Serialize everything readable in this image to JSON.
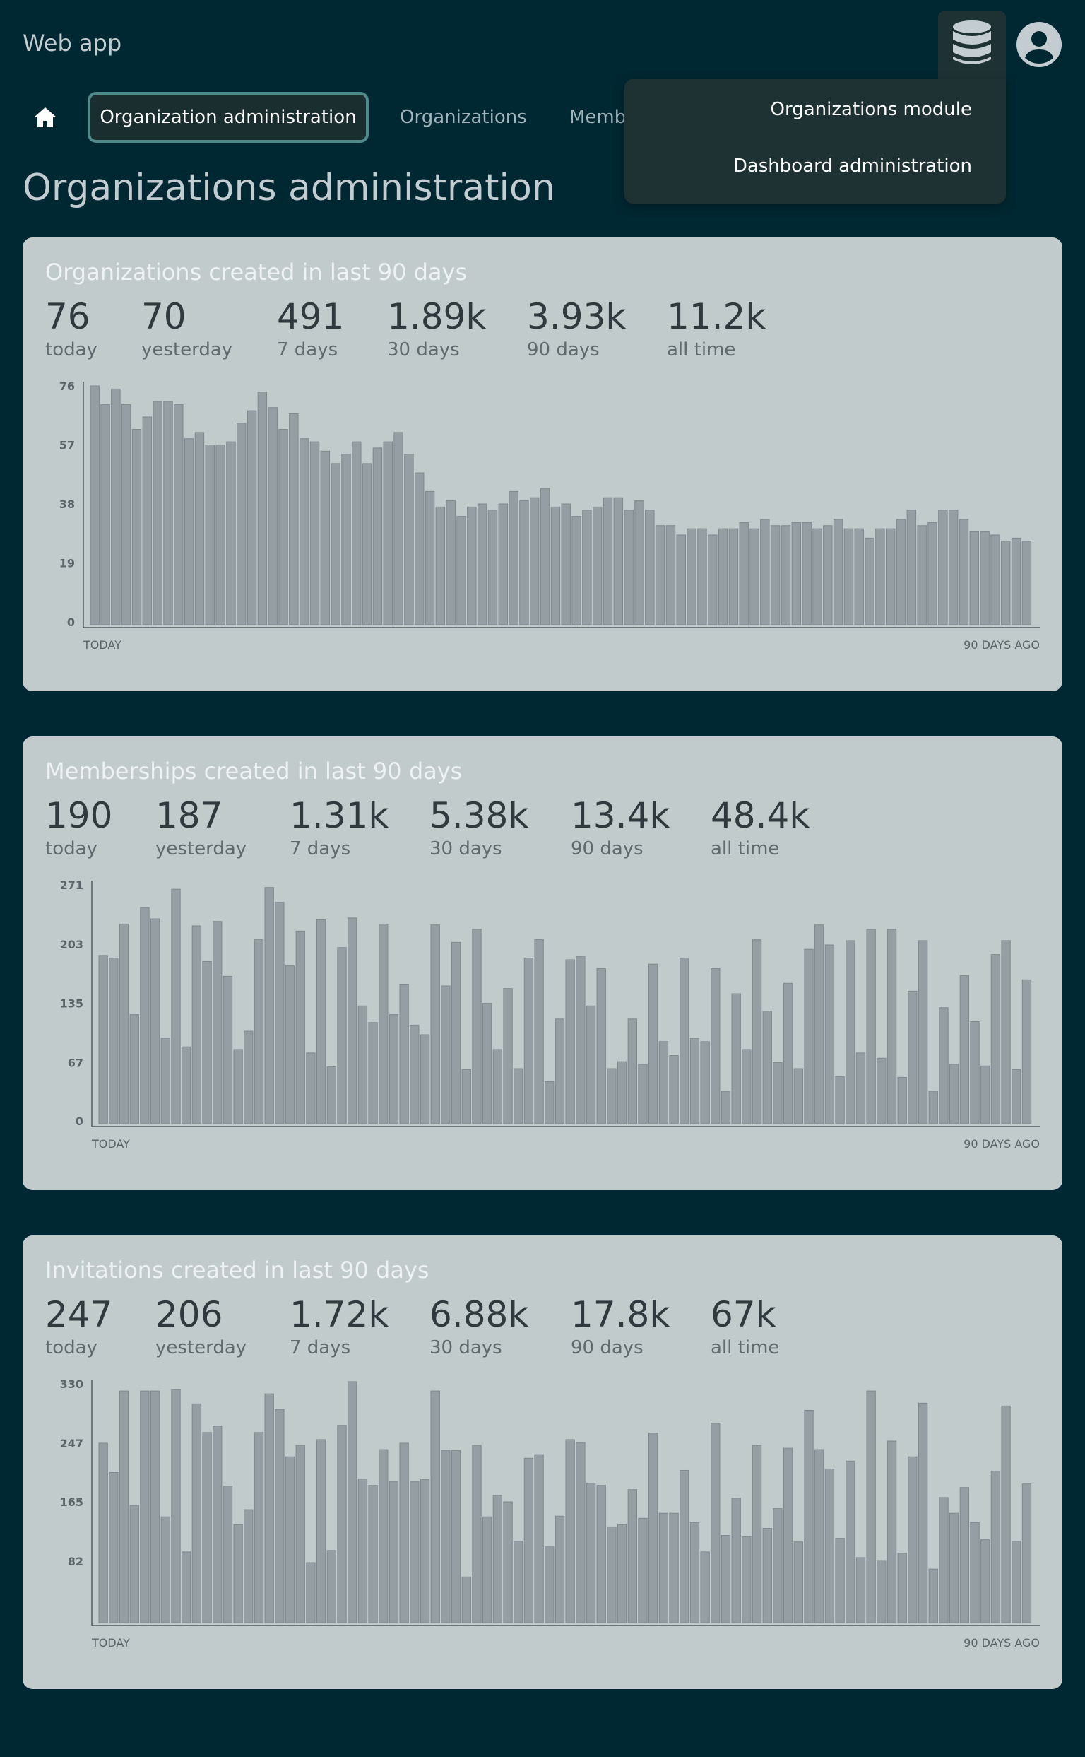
{
  "header": {
    "app_title": "Web app"
  },
  "nav": {
    "active_tab": "Organization administration",
    "tabs": [
      "Organizations",
      "Memb"
    ]
  },
  "dropdown": {
    "items": [
      "Organizations module",
      "Dashboard administration"
    ]
  },
  "page_title": "Organizations administration",
  "colors": {
    "background": "#002832",
    "card": "#c1cbcc",
    "bar": "#949ea3",
    "accent": "#4f8a8b"
  },
  "icons": {
    "database": "database-icon",
    "user": "account-circle-icon",
    "home": "home-icon"
  },
  "cards": [
    {
      "title": "Organizations created in last 90 days",
      "stats": [
        {
          "value": "76",
          "label": "today"
        },
        {
          "value": "70",
          "label": "yesterday"
        },
        {
          "value": "491",
          "label": "7 days"
        },
        {
          "value": "1.89k",
          "label": "30 days"
        },
        {
          "value": "3.93k",
          "label": "90 days"
        },
        {
          "value": "11.2k",
          "label": "all time"
        }
      ],
      "x_left_label": "TODAY",
      "x_right_label": "90 DAYS AGO"
    },
    {
      "title": "Memberships created in last 90 days",
      "stats": [
        {
          "value": "190",
          "label": "today"
        },
        {
          "value": "187",
          "label": "yesterday"
        },
        {
          "value": "1.31k",
          "label": "7 days"
        },
        {
          "value": "5.38k",
          "label": "30 days"
        },
        {
          "value": "13.4k",
          "label": "90 days"
        },
        {
          "value": "48.4k",
          "label": "all time"
        }
      ],
      "x_left_label": "TODAY",
      "x_right_label": "90 DAYS AGO"
    },
    {
      "title": "Invitations created in last 90 days",
      "stats": [
        {
          "value": "247",
          "label": "today"
        },
        {
          "value": "206",
          "label": "yesterday"
        },
        {
          "value": "1.72k",
          "label": "7 days"
        },
        {
          "value": "6.88k",
          "label": "30 days"
        },
        {
          "value": "17.8k",
          "label": "90 days"
        },
        {
          "value": "67k",
          "label": "all time"
        }
      ],
      "x_left_label": "TODAY",
      "x_right_label": "90 DAYS AGO"
    }
  ],
  "chart_data": [
    {
      "type": "bar",
      "yticks": [
        "0",
        "19",
        "38",
        "57",
        "76"
      ],
      "ylim": [
        0,
        76
      ],
      "values": [
        76,
        70,
        75,
        70,
        62,
        66,
        71,
        71,
        70,
        59,
        61,
        57,
        57,
        58,
        64,
        68,
        74,
        69,
        62,
        67,
        59,
        58,
        55,
        51,
        54,
        58,
        51,
        56,
        58,
        61,
        54,
        48,
        42,
        37,
        39,
        34,
        37,
        38,
        36,
        38,
        42,
        39,
        40,
        43,
        37,
        38,
        34,
        36,
        37,
        40,
        40,
        36,
        39,
        36,
        31,
        31,
        28,
        30,
        30,
        28,
        30,
        30,
        32,
        30,
        33,
        31,
        31,
        32,
        32,
        30,
        31,
        33,
        30,
        30,
        27,
        30,
        30,
        33,
        36,
        31,
        32,
        36,
        36,
        33,
        29,
        29,
        28,
        26,
        27,
        26
      ]
    },
    {
      "type": "bar",
      "yticks": [
        "0",
        "67",
        "135",
        "203",
        "271"
      ],
      "ylim": [
        0,
        271
      ],
      "values": [
        190,
        187,
        226,
        122,
        245,
        232,
        95,
        266,
        85,
        224,
        183,
        229,
        166,
        82,
        103,
        208,
        268,
        251,
        178,
        218,
        78,
        231,
        62,
        199,
        233,
        132,
        113,
        226,
        122,
        157,
        110,
        99,
        225,
        155,
        205,
        59,
        220,
        135,
        82,
        152,
        60,
        187,
        208,
        45,
        117,
        185,
        189,
        132,
        175,
        60,
        68,
        117,
        65,
        180,
        91,
        75,
        187,
        95,
        91,
        175,
        34,
        146,
        82,
        208,
        126,
        67,
        158,
        60,
        197,
        225,
        202,
        51,
        207,
        78,
        220,
        72,
        220,
        50,
        149,
        207,
        34,
        130,
        65,
        167,
        114,
        63,
        191,
        207,
        59,
        162
      ]
    },
    {
      "type": "bar",
      "yticks": [
        "82",
        "165",
        "247",
        "330"
      ],
      "ylim": [
        0,
        330
      ],
      "values": [
        247,
        206,
        320,
        160,
        320,
        320,
        144,
        322,
        95,
        302,
        262,
        271,
        187,
        133,
        154,
        262,
        316,
        294,
        228,
        244,
        80,
        252,
        97,
        272,
        333,
        197,
        188,
        238,
        193,
        247,
        193,
        196,
        320,
        237,
        237,
        60,
        244,
        144,
        174,
        165,
        110,
        226,
        231,
        102,
        145,
        252,
        248,
        191,
        188,
        130,
        133,
        182,
        142,
        261,
        149,
        149,
        209,
        136,
        95,
        275,
        118,
        170,
        116,
        244,
        128,
        156,
        240,
        109,
        293,
        238,
        211,
        114,
        222,
        87,
        320,
        83,
        250,
        93,
        228,
        303,
        71,
        171,
        149,
        185,
        136,
        112,
        208,
        299,
        110,
        190
      ]
    }
  ]
}
